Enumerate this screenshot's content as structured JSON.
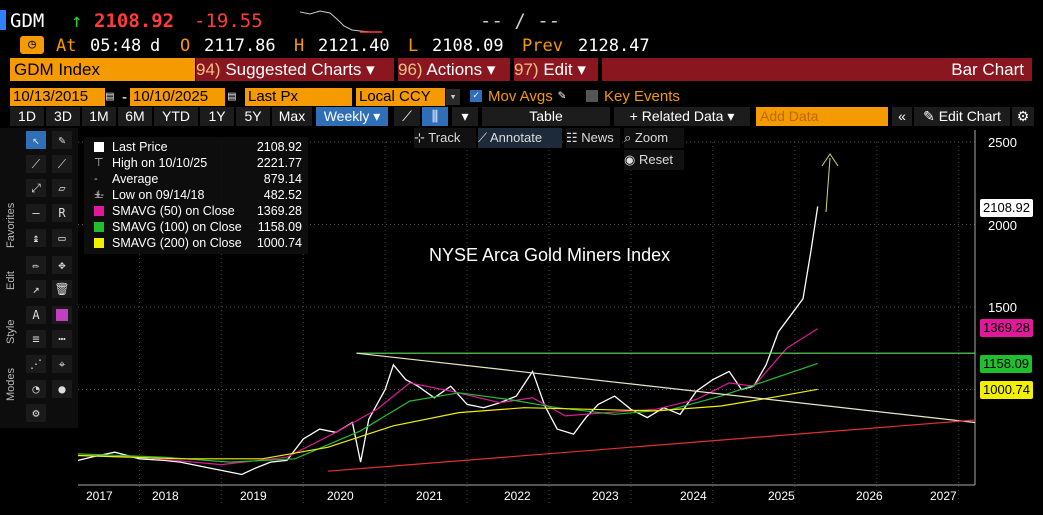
{
  "quote": {
    "ticker": "GDM",
    "arrow": "↑",
    "last": "2108.92",
    "change": "-19.55",
    "bidask": "-- / --"
  },
  "stats": {
    "at_label": "At",
    "time": "05:48",
    "d": "d",
    "open_label": "O",
    "open": "2117.86",
    "high_label": "H",
    "high": "2121.40",
    "low_label": "L",
    "low": "2108.09",
    "prev_label": "Prev",
    "prev": "2128.47"
  },
  "header": {
    "index_label": "GDM Index",
    "suggested_num": "94)",
    "suggested": "Suggested Charts",
    "actions_num": "96)",
    "actions": "Actions",
    "edit_num": "97)",
    "edit": "Edit",
    "chart_kind": "Bar Chart"
  },
  "range": {
    "start": "10/13/2015",
    "end": "10/10/2025",
    "field": "Last Px",
    "currency": "Local CCY",
    "mov_avgs": "Mov Avgs",
    "key_events": "Key Events"
  },
  "toolbar": {
    "periods": [
      "1D",
      "3D",
      "1M",
      "6M",
      "YTD",
      "1Y",
      "5Y",
      "Max"
    ],
    "frequency": "Weekly",
    "table": "Table",
    "related": "+ Related Data",
    "add_data_placeholder": "Add Data",
    "edit_chart": "Edit Chart"
  },
  "overlay_tools": {
    "track": "Track",
    "annotate": "Annotate",
    "news": "News",
    "zoom": "Zoom",
    "reset": "Reset"
  },
  "side_tabs": [
    "Favorites",
    "Edit",
    "Style",
    "Modes"
  ],
  "legend": [
    {
      "label": "Last Price",
      "value": "2108.92",
      "color": "#ffffff"
    },
    {
      "label": "High on 10/10/25",
      "value": "2221.77",
      "color": ""
    },
    {
      "label": "Average",
      "value": "879.14",
      "color": ""
    },
    {
      "label": "Low on 09/14/18",
      "value": "482.52",
      "color": ""
    },
    {
      "label": "SMAVG (50)  on Close",
      "value": "1369.28",
      "color": "#e0189a"
    },
    {
      "label": "SMAVG (100)  on Close",
      "value": "1158.09",
      "color": "#1fbf2f"
    },
    {
      "label": "SMAVG (200)  on Close",
      "value": "1000.74",
      "color": "#f0f000"
    }
  ],
  "chart_data": {
    "type": "line",
    "title": "NYSE Arca Gold Miners Index",
    "x_ticks": [
      "2017",
      "2018",
      "2019",
      "2020",
      "2021",
      "2022",
      "2023",
      "2024",
      "2025",
      "2026",
      "2027"
    ],
    "y_ticks": [
      1500,
      2000,
      2500
    ],
    "ylim": [
      500,
      2600
    ],
    "price_tags": [
      {
        "value": "2108.92",
        "color": "#ffffff"
      },
      {
        "value": "1369.28",
        "color": "#e0189a"
      },
      {
        "value": "1158.09",
        "color": "#1fbf2f"
      },
      {
        "value": "1000.74",
        "color": "#f0f000"
      }
    ],
    "series": [
      {
        "name": "Last Price",
        "color": "#ffffff",
        "points": [
          [
            2016.75,
            570
          ],
          [
            2017.0,
            600
          ],
          [
            2017.2,
            620
          ],
          [
            2017.5,
            580
          ],
          [
            2017.8,
            570
          ],
          [
            2018.0,
            560
          ],
          [
            2018.3,
            530
          ],
          [
            2018.6,
            500
          ],
          [
            2018.75,
            485
          ],
          [
            2018.9,
            520
          ],
          [
            2019.1,
            560
          ],
          [
            2019.3,
            570
          ],
          [
            2019.5,
            700
          ],
          [
            2019.7,
            760
          ],
          [
            2019.9,
            740
          ],
          [
            2020.1,
            800
          ],
          [
            2020.2,
            560
          ],
          [
            2020.3,
            820
          ],
          [
            2020.5,
            1000
          ],
          [
            2020.6,
            1150
          ],
          [
            2020.75,
            1060
          ],
          [
            2020.9,
            1020
          ],
          [
            2021.1,
            950
          ],
          [
            2021.3,
            1020
          ],
          [
            2021.5,
            910
          ],
          [
            2021.7,
            890
          ],
          [
            2021.9,
            920
          ],
          [
            2022.1,
            960
          ],
          [
            2022.3,
            1110
          ],
          [
            2022.45,
            900
          ],
          [
            2022.6,
            760
          ],
          [
            2022.8,
            730
          ],
          [
            2022.95,
            830
          ],
          [
            2023.1,
            910
          ],
          [
            2023.3,
            960
          ],
          [
            2023.5,
            880
          ],
          [
            2023.7,
            830
          ],
          [
            2023.9,
            890
          ],
          [
            2024.1,
            850
          ],
          [
            2024.3,
            990
          ],
          [
            2024.5,
            1060
          ],
          [
            2024.7,
            1110
          ],
          [
            2024.85,
            1000
          ],
          [
            2025.0,
            1020
          ],
          [
            2025.15,
            1150
          ],
          [
            2025.3,
            1350
          ],
          [
            2025.45,
            1450
          ],
          [
            2025.6,
            1550
          ],
          [
            2025.7,
            1850
          ],
          [
            2025.78,
            2109
          ]
        ]
      },
      {
        "name": "SMAVG (50)",
        "color": "#e0189a",
        "points": [
          [
            2016.75,
            600
          ],
          [
            2017.5,
            590
          ],
          [
            2018.5,
            545
          ],
          [
            2019.3,
            590
          ],
          [
            2019.9,
            740
          ],
          [
            2020.4,
            880
          ],
          [
            2020.8,
            1040
          ],
          [
            2021.3,
            990
          ],
          [
            2021.9,
            920
          ],
          [
            2022.3,
            950
          ],
          [
            2022.7,
            840
          ],
          [
            2023.2,
            860
          ],
          [
            2023.8,
            880
          ],
          [
            2024.3,
            940
          ],
          [
            2024.7,
            1040
          ],
          [
            2025.0,
            1020
          ],
          [
            2025.4,
            1250
          ],
          [
            2025.78,
            1369
          ]
        ]
      },
      {
        "name": "SMAVG (100)",
        "color": "#1fbf2f",
        "points": [
          [
            2016.75,
            610
          ],
          [
            2017.8,
            590
          ],
          [
            2018.6,
            560
          ],
          [
            2019.4,
            580
          ],
          [
            2020.2,
            750
          ],
          [
            2020.8,
            930
          ],
          [
            2021.4,
            980
          ],
          [
            2022.0,
            940
          ],
          [
            2022.6,
            890
          ],
          [
            2023.3,
            850
          ],
          [
            2024.0,
            880
          ],
          [
            2024.6,
            960
          ],
          [
            2025.2,
            1060
          ],
          [
            2025.78,
            1158
          ]
        ]
      },
      {
        "name": "SMAVG (200)",
        "color": "#f0f000",
        "points": [
          [
            2016.75,
            600
          ],
          [
            2018.0,
            580
          ],
          [
            2019.0,
            580
          ],
          [
            2019.8,
            650
          ],
          [
            2020.6,
            780
          ],
          [
            2021.4,
            860
          ],
          [
            2022.2,
            890
          ],
          [
            2023.0,
            880
          ],
          [
            2023.8,
            870
          ],
          [
            2024.6,
            900
          ],
          [
            2025.2,
            950
          ],
          [
            2025.78,
            1001
          ]
        ]
      },
      {
        "name": "Horizontal resistance",
        "color": "#5fe05f",
        "points": [
          [
            2020.15,
            1220
          ],
          [
            2027.7,
            1220
          ]
        ]
      },
      {
        "name": "Descending trendline",
        "color": "#e8e8c8",
        "points": [
          [
            2020.15,
            1220
          ],
          [
            2027.7,
            800
          ]
        ]
      },
      {
        "name": "Rising trendline",
        "color": "#e03030",
        "points": [
          [
            2019.8,
            505
          ],
          [
            2027.7,
            815
          ]
        ]
      }
    ]
  }
}
